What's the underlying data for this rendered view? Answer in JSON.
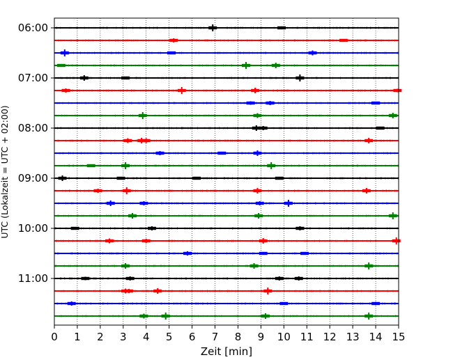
{
  "chart_data": {
    "type": "line",
    "title": "",
    "xlabel": "Zeit  [min]",
    "ylabel": "UTC (Lokalzeit = UTC + 02:00)",
    "xlim": [
      0,
      15
    ],
    "x_ticks": [
      "0",
      "1",
      "2",
      "3",
      "4",
      "5",
      "6",
      "7",
      "8",
      "9",
      "10",
      "11",
      "12",
      "13",
      "14",
      "15"
    ],
    "y_ticks": [
      "06:00",
      "07:00",
      "08:00",
      "09:00",
      "10:00",
      "11:00"
    ],
    "grid": "vertical dotted lines at each minute",
    "trace_colors": [
      "#000000",
      "#ff0000",
      "#0000ff",
      "#008000"
    ],
    "trace_interval_min": 15,
    "traces": [
      {
        "start": "06:00",
        "color": "#000000",
        "spikes": [
          {
            "t": 6.9,
            "a": 5
          },
          {
            "t": 9.9,
            "a": 2
          }
        ]
      },
      {
        "start": "06:15",
        "color": "#ff0000",
        "spikes": [
          {
            "t": 5.2,
            "a": 3
          },
          {
            "t": 12.6,
            "a": 2
          }
        ]
      },
      {
        "start": "06:30",
        "color": "#0000ff",
        "spikes": [
          {
            "t": 0.45,
            "a": 5
          },
          {
            "t": 5.1,
            "a": 2
          },
          {
            "t": 11.25,
            "a": 3.5
          }
        ]
      },
      {
        "start": "06:45",
        "color": "#008000",
        "spikes": [
          {
            "t": 8.35,
            "a": 5
          },
          {
            "t": 9.65,
            "a": 4
          },
          {
            "t": 0.3,
            "a": 1.5
          }
        ]
      },
      {
        "start": "07:00",
        "color": "#000000",
        "spikes": [
          {
            "t": 1.3,
            "a": 4
          },
          {
            "t": 10.7,
            "a": 5
          },
          {
            "t": 3.1,
            "a": 1.5
          }
        ]
      },
      {
        "start": "07:15",
        "color": "#ff0000",
        "spikes": [
          {
            "t": 0.5,
            "a": 3
          },
          {
            "t": 5.55,
            "a": 5
          },
          {
            "t": 8.75,
            "a": 4
          },
          {
            "t": 14.95,
            "a": 2.5
          }
        ]
      },
      {
        "start": "07:30",
        "color": "#0000ff",
        "spikes": [
          {
            "t": 8.55,
            "a": 2.5
          },
          {
            "t": 9.4,
            "a": 3
          },
          {
            "t": 14.0,
            "a": 2
          }
        ]
      },
      {
        "start": "07:45",
        "color": "#008000",
        "spikes": [
          {
            "t": 3.85,
            "a": 5
          },
          {
            "t": 8.85,
            "a": 3.5
          },
          {
            "t": 14.75,
            "a": 4
          }
        ]
      },
      {
        "start": "08:00",
        "color": "#000000",
        "spikes": [
          {
            "t": 8.8,
            "a": 4
          },
          {
            "t": 9.1,
            "a": 3
          },
          {
            "t": 14.2,
            "a": 2
          }
        ]
      },
      {
        "start": "08:15",
        "color": "#ff0000",
        "spikes": [
          {
            "t": 3.2,
            "a": 3.5
          },
          {
            "t": 3.8,
            "a": 4
          },
          {
            "t": 4.0,
            "a": 3.5
          },
          {
            "t": 13.7,
            "a": 4
          }
        ]
      },
      {
        "start": "08:30",
        "color": "#0000ff",
        "spikes": [
          {
            "t": 4.6,
            "a": 3
          },
          {
            "t": 8.85,
            "a": 4
          },
          {
            "t": 7.3,
            "a": 1.5
          }
        ]
      },
      {
        "start": "08:45",
        "color": "#008000",
        "spikes": [
          {
            "t": 3.1,
            "a": 5
          },
          {
            "t": 9.45,
            "a": 5
          },
          {
            "t": 1.6,
            "a": 1.5
          }
        ]
      },
      {
        "start": "09:00",
        "color": "#000000",
        "spikes": [
          {
            "t": 0.35,
            "a": 4
          },
          {
            "t": 2.9,
            "a": 2
          },
          {
            "t": 6.2,
            "a": 2
          },
          {
            "t": 9.8,
            "a": 2
          }
        ]
      },
      {
        "start": "09:15",
        "color": "#ff0000",
        "spikes": [
          {
            "t": 1.9,
            "a": 3
          },
          {
            "t": 3.15,
            "a": 5
          },
          {
            "t": 8.85,
            "a": 4
          },
          {
            "t": 13.6,
            "a": 4
          }
        ]
      },
      {
        "start": "09:30",
        "color": "#0000ff",
        "spikes": [
          {
            "t": 2.45,
            "a": 4
          },
          {
            "t": 3.9,
            "a": 3
          },
          {
            "t": 8.95,
            "a": 3
          },
          {
            "t": 10.2,
            "a": 5
          }
        ]
      },
      {
        "start": "09:45",
        "color": "#008000",
        "spikes": [
          {
            "t": 3.4,
            "a": 4
          },
          {
            "t": 8.9,
            "a": 4
          },
          {
            "t": 14.75,
            "a": 5
          }
        ]
      },
      {
        "start": "10:00",
        "color": "#000000",
        "spikes": [
          {
            "t": 0.9,
            "a": 2
          },
          {
            "t": 4.25,
            "a": 3
          },
          {
            "t": 10.7,
            "a": 3
          }
        ]
      },
      {
        "start": "10:15",
        "color": "#ff0000",
        "spikes": [
          {
            "t": 2.4,
            "a": 3.5
          },
          {
            "t": 4.0,
            "a": 3
          },
          {
            "t": 9.1,
            "a": 4
          },
          {
            "t": 14.9,
            "a": 5
          }
        ]
      },
      {
        "start": "10:30",
        "color": "#0000ff",
        "spikes": [
          {
            "t": 5.8,
            "a": 3
          },
          {
            "t": 9.1,
            "a": 2
          },
          {
            "t": 10.9,
            "a": 1.5
          }
        ]
      },
      {
        "start": "10:45",
        "color": "#008000",
        "spikes": [
          {
            "t": 3.1,
            "a": 4
          },
          {
            "t": 8.7,
            "a": 4
          },
          {
            "t": 13.7,
            "a": 5
          }
        ]
      },
      {
        "start": "11:00",
        "color": "#000000",
        "spikes": [
          {
            "t": 1.35,
            "a": 2.5
          },
          {
            "t": 3.3,
            "a": 3
          },
          {
            "t": 9.8,
            "a": 3
          },
          {
            "t": 10.65,
            "a": 3
          }
        ]
      },
      {
        "start": "11:15",
        "color": "#ff0000",
        "spikes": [
          {
            "t": 3.1,
            "a": 3.5
          },
          {
            "t": 3.25,
            "a": 3
          },
          {
            "t": 4.5,
            "a": 4
          },
          {
            "t": 9.3,
            "a": 5
          }
        ]
      },
      {
        "start": "11:30",
        "color": "#0000ff",
        "spikes": [
          {
            "t": 0.75,
            "a": 3
          },
          {
            "t": 10.0,
            "a": 2
          },
          {
            "t": 14.0,
            "a": 2.5
          }
        ]
      },
      {
        "start": "11:45",
        "color": "#008000",
        "spikes": [
          {
            "t": 3.9,
            "a": 3.5
          },
          {
            "t": 4.85,
            "a": 5
          },
          {
            "t": 9.2,
            "a": 4
          },
          {
            "t": 13.7,
            "a": 5
          }
        ]
      }
    ]
  }
}
